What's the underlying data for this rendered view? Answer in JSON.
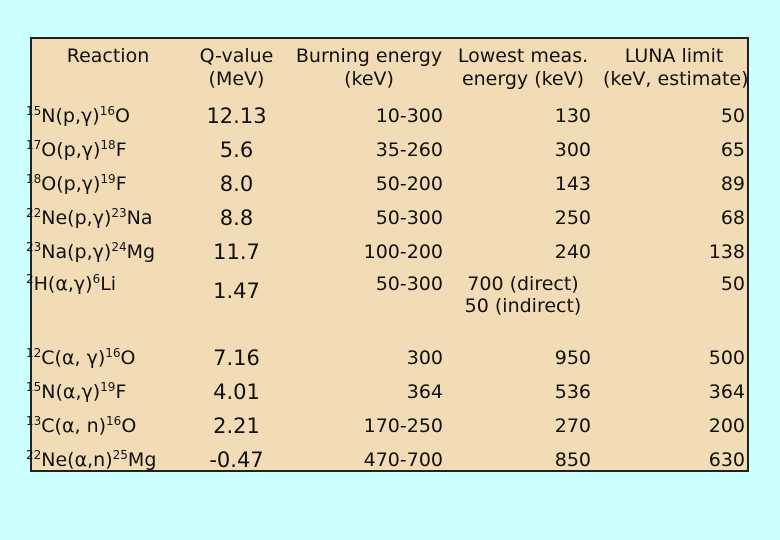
{
  "headers": [
    [
      "Reaction"
    ],
    [
      "Q-value",
      "(MeV)"
    ],
    [
      "Burning energy",
      "(keV)"
    ],
    [
      "Lowest meas.",
      "energy (keV)"
    ],
    [
      "LUNA limit",
      "(keV, estimate)"
    ]
  ],
  "rows": [
    {
      "reaction": {
        "a": "15",
        "b": "N(p,",
        "g": "γ",
        "c": ")",
        "d": "16",
        "e": "O"
      },
      "q": "12.13",
      "burn": "10-300",
      "lowest": [
        "130"
      ],
      "luna": "50"
    },
    {
      "reaction": {
        "a": "17",
        "b": "O(p,",
        "g": "γ",
        "c": ")",
        "d": "18",
        "e": "F"
      },
      "q": "5.6",
      "burn": "35-260",
      "lowest": [
        "300"
      ],
      "luna": "65"
    },
    {
      "reaction": {
        "a": "18",
        "b": "O(p,",
        "g": "γ",
        "c": ")",
        "d": "19",
        "e": "F"
      },
      "q": "8.0",
      "burn": "50-200",
      "lowest": [
        "143"
      ],
      "luna": "89"
    },
    {
      "reaction": {
        "a": "22",
        "b": "Ne(p,",
        "g": "γ",
        "c": ")",
        "d": "23",
        "e": "Na"
      },
      "q": "8.8",
      "burn": "50-300",
      "lowest": [
        "250"
      ],
      "luna": "68"
    },
    {
      "reaction": {
        "a": "23",
        "b": "Na(p,",
        "g": "γ",
        "c": ")",
        "d": "24",
        "e": "Mg"
      },
      "q": "11.7",
      "burn": "100-200",
      "lowest": [
        "240"
      ],
      "luna": "138"
    },
    {
      "reaction": {
        "a": "2",
        "b": "H(",
        "g": "α,γ",
        "c": ")",
        "d": "6",
        "e": "Li"
      },
      "q": "1.47",
      "burn": "50-300",
      "lowest": [
        "700 (direct)",
        "50 (indirect)"
      ],
      "luna": "50"
    },
    {
      "reaction": {
        "a": "12",
        "b": "C(",
        "g": "α, γ",
        "c": ")",
        "d": "16",
        "e": "O"
      },
      "q": "7.16",
      "burn": "300",
      "lowest": [
        "950"
      ],
      "luna": "500"
    },
    {
      "reaction": {
        "a": "15",
        "b": "N(",
        "g": "α,γ",
        "c": ")",
        "d": "19",
        "e": "F"
      },
      "q": "4.01",
      "burn": "364",
      "lowest": [
        "536"
      ],
      "luna": "364"
    },
    {
      "reaction": {
        "a": "13",
        "b": "C(",
        "g": "α",
        "c": ", n)",
        "d": "16",
        "e": "O"
      },
      "q": "2.21",
      "burn": "170-250",
      "lowest": [
        "270"
      ],
      "luna": "200"
    },
    {
      "reaction": {
        "a": "22",
        "b": "Ne(",
        "g": "α",
        "c": ",n)",
        "d": "25",
        "e": "Mg"
      },
      "q": "-0.47",
      "burn": "470-700",
      "lowest": [
        "850"
      ],
      "luna": "630"
    }
  ],
  "colors": {
    "background": "#ccffff",
    "table": "#f2dcb6",
    "border": "#222222"
  }
}
